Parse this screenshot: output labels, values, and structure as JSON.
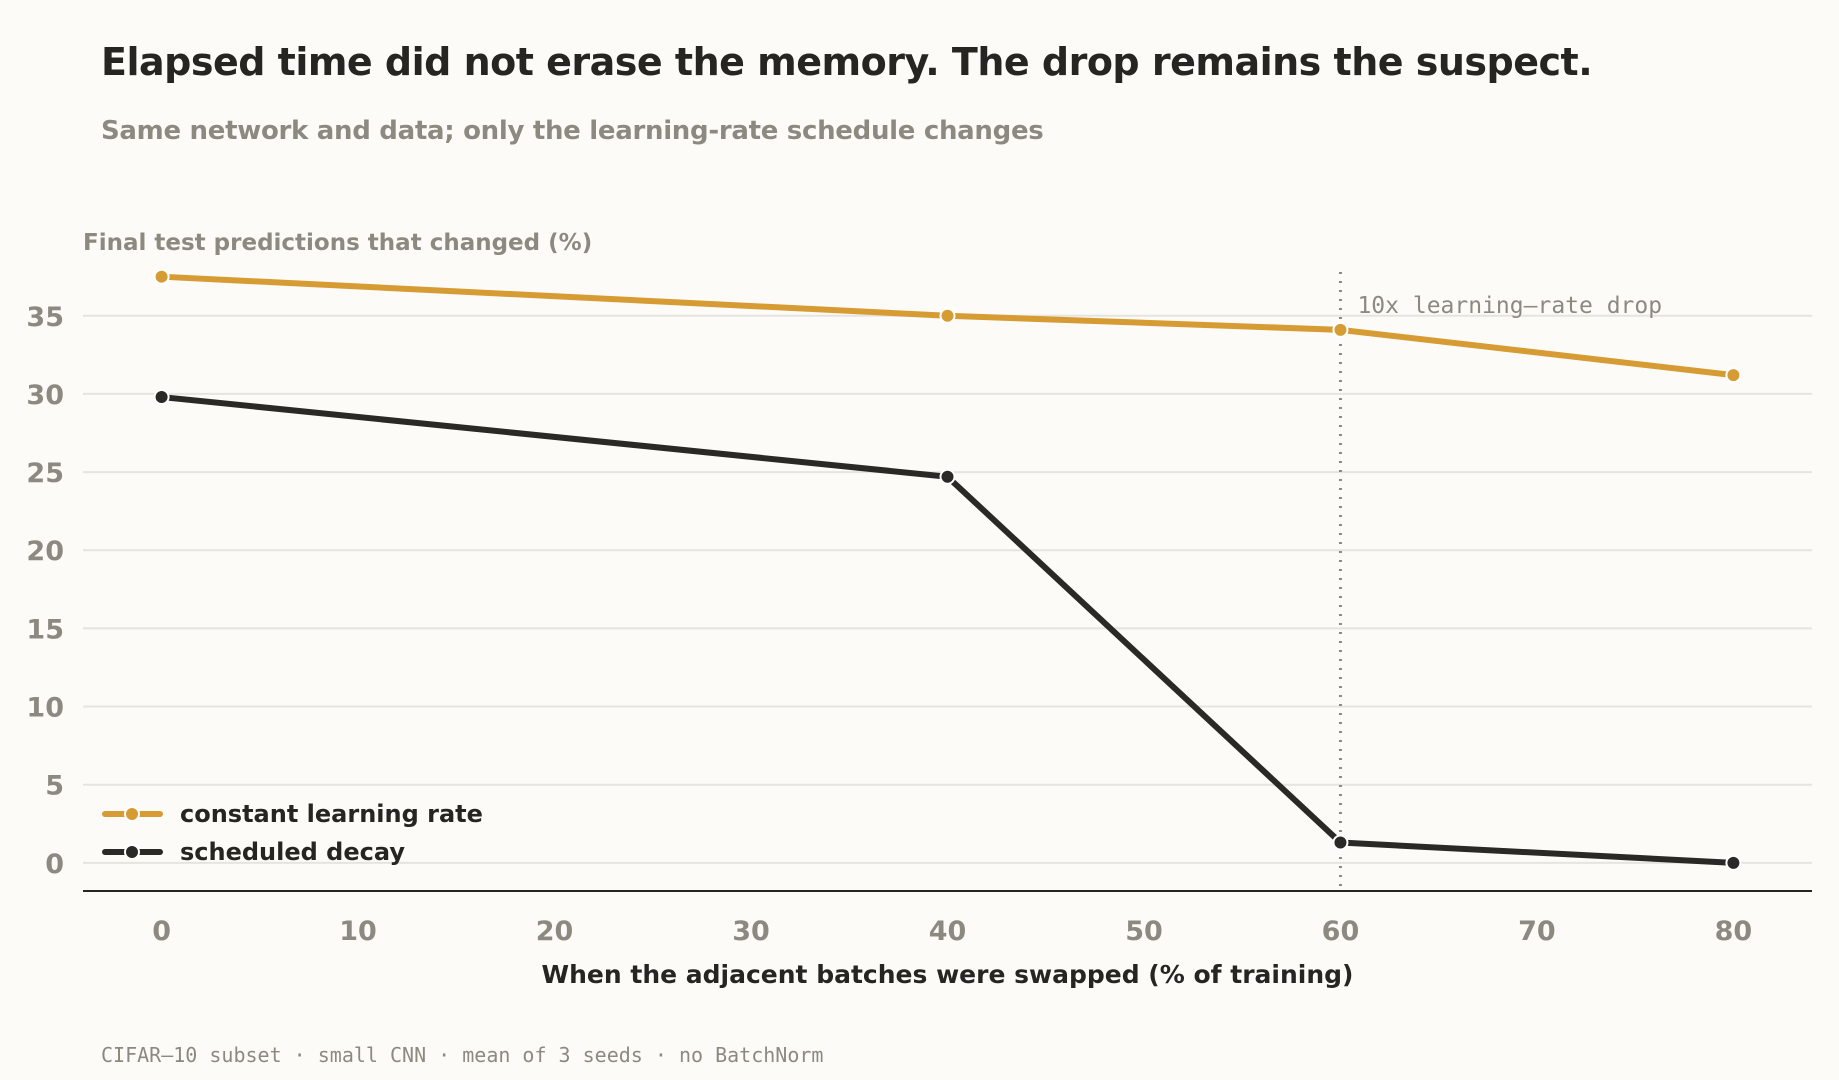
{
  "title": "Elapsed time did not erase the memory. The drop remains the suspect.",
  "subtitle": "Same network and data; only the learning-rate schedule changes",
  "footer": "CIFAR–10 subset · small CNN · mean of 3 seeds · no BatchNorm",
  "chart_data": {
    "type": "line",
    "ylabel": "Final test predictions that changed (%)",
    "xlabel": "When the adjacent batches were swapped (% of training)",
    "xlim": [
      -4,
      84
    ],
    "ylim": [
      -1.8,
      37.8
    ],
    "x_ticks": [
      0,
      10,
      20,
      30,
      40,
      50,
      60,
      70,
      80
    ],
    "y_ticks": [
      0,
      5,
      10,
      15,
      20,
      25,
      30,
      35
    ],
    "grid": "horizontal",
    "legend_position": "bottom-left",
    "series": [
      {
        "name": "constant learning rate",
        "color": "#d69b33",
        "x": [
          0,
          40,
          60,
          80
        ],
        "y": [
          37.5,
          35.0,
          34.1,
          31.2
        ]
      },
      {
        "name": "scheduled decay",
        "color": "#2a2926",
        "x": [
          0,
          40,
          60,
          80
        ],
        "y": [
          29.8,
          24.7,
          1.3,
          0.0
        ]
      }
    ],
    "annotations": [
      {
        "type": "vline",
        "x": 60,
        "text": "10x learning–rate drop",
        "color": "#8c8a80"
      }
    ]
  }
}
